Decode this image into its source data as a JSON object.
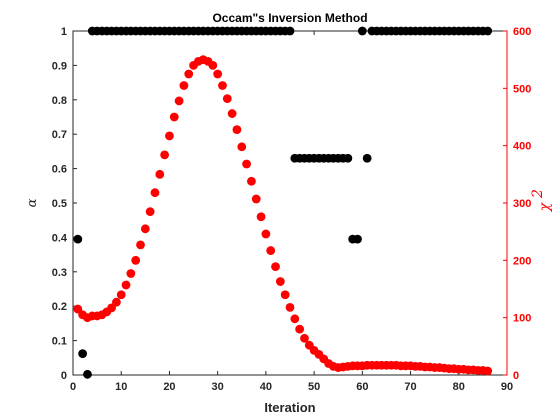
{
  "chart_data": {
    "type": "scatter",
    "title": "Occam\"s Inversion Method",
    "xlabel": "Iteration",
    "ylabel_left": "α",
    "ylabel_right": "χ",
    "ylabel_right_superscript": "2",
    "xlim": [
      0,
      90
    ],
    "ylim_left": [
      0,
      1
    ],
    "ylim_right": [
      0,
      600
    ],
    "x_ticks": [
      "0",
      "10",
      "20",
      "30",
      "40",
      "50",
      "60",
      "70",
      "80",
      "90"
    ],
    "y_left_ticks": [
      "0",
      "0.1",
      "0.2",
      "0.3",
      "0.4",
      "0.5",
      "0.6",
      "0.7",
      "0.8",
      "0.9",
      "1"
    ],
    "y_right_ticks": [
      "0",
      "100",
      "200",
      "300",
      "400",
      "500",
      "600"
    ],
    "grid": false,
    "colors": {
      "alpha": "#000000",
      "chi2": "#ff0000",
      "right_axis": "#ff0000"
    },
    "series": [
      {
        "axis": "left",
        "x": [
          1,
          2,
          3,
          4,
          5,
          6,
          7,
          8,
          9,
          10,
          11,
          12,
          13,
          14,
          15,
          16,
          17,
          18,
          19,
          20,
          21,
          22,
          23,
          24,
          25,
          26,
          27,
          28,
          29,
          30,
          31,
          32,
          33,
          34,
          35,
          36,
          37,
          38,
          39,
          40,
          41,
          42,
          43,
          44,
          45,
          46,
          47,
          48,
          49,
          50,
          51,
          52,
          53,
          54,
          55,
          56,
          57,
          58,
          59,
          60,
          61,
          62,
          63,
          64,
          65,
          66,
          67,
          68,
          69,
          70,
          71,
          72,
          73,
          74,
          75,
          76,
          77,
          78,
          79,
          80,
          81,
          82,
          83,
          84,
          85,
          86
        ],
        "y": [
          0.395,
          0.062,
          0.002,
          1,
          1,
          1,
          1,
          1,
          1,
          1,
          1,
          1,
          1,
          1,
          1,
          1,
          1,
          1,
          1,
          1,
          1,
          1,
          1,
          1,
          1,
          1,
          1,
          1,
          1,
          1,
          1,
          1,
          1,
          1,
          1,
          1,
          1,
          1,
          1,
          1,
          1,
          1,
          1,
          1,
          1,
          0.63,
          0.63,
          0.63,
          0.63,
          0.63,
          0.63,
          0.63,
          0.63,
          0.63,
          0.63,
          0.63,
          0.63,
          0.395,
          0.395,
          1,
          0.63,
          1,
          1,
          1,
          1,
          1,
          1,
          1,
          1,
          1,
          1,
          1,
          1,
          1,
          1,
          1,
          1,
          1,
          1,
          1,
          1,
          1,
          1,
          1,
          1,
          1
        ]
      },
      {
        "axis": "right",
        "x": [
          1,
          2,
          3,
          4,
          5,
          6,
          7,
          8,
          9,
          10,
          11,
          12,
          13,
          14,
          15,
          16,
          17,
          18,
          19,
          20,
          21,
          22,
          23,
          24,
          25,
          26,
          27,
          28,
          29,
          30,
          31,
          32,
          33,
          34,
          35,
          36,
          37,
          38,
          39,
          40,
          41,
          42,
          43,
          44,
          45,
          46,
          47,
          48,
          49,
          50,
          51,
          52,
          53,
          54,
          55,
          56,
          57,
          58,
          59,
          60,
          61,
          62,
          63,
          64,
          65,
          66,
          67,
          68,
          69,
          70,
          71,
          72,
          73,
          74,
          75,
          76,
          77,
          78,
          79,
          80,
          81,
          82,
          83,
          84,
          85,
          86
        ],
        "y": [
          115,
          105,
          100,
          103,
          103,
          105,
          110,
          117,
          127,
          140,
          157,
          177,
          200,
          227,
          255,
          285,
          318,
          350,
          384,
          417,
          450,
          478,
          505,
          525,
          540,
          547,
          550,
          547,
          540,
          525,
          505,
          482,
          456,
          428,
          398,
          368,
          338,
          307,
          276,
          246,
          217,
          189,
          163,
          140,
          118,
          98,
          80,
          64,
          52,
          43,
          36,
          28,
          20,
          15,
          13,
          14,
          15,
          16,
          16,
          16,
          17,
          17,
          17,
          17,
          17,
          17,
          17,
          16,
          16,
          16,
          15,
          15,
          14,
          14,
          13,
          13,
          12,
          11,
          11,
          10,
          10,
          9,
          9,
          8,
          8,
          7
        ]
      }
    ]
  }
}
